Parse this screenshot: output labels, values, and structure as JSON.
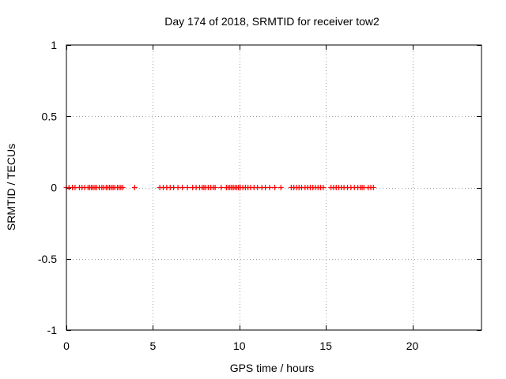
{
  "chart_data": {
    "type": "scatter",
    "title": "Day 174 of 2018, SRMTID for receiver tow2",
    "xlabel": "GPS time / hours",
    "ylabel": "SRMTID / TECUs",
    "xlim": [
      0,
      24
    ],
    "ylim": [
      -1,
      1
    ],
    "xticks": [
      0,
      5,
      10,
      15,
      20
    ],
    "xtick_labels": [
      "0",
      "5",
      "10",
      "15",
      "20"
    ],
    "yticks": [
      1,
      0.5,
      0,
      -0.5,
      -1
    ],
    "ytick_labels": [
      "1",
      "0.5",
      "0",
      "-0.5",
      "-1"
    ],
    "grid": true,
    "marker": "+",
    "color": "#ff0000",
    "series": [
      {
        "name": "SRMTID",
        "x": [
          0.0,
          0.15,
          0.35,
          0.5,
          0.75,
          0.9,
          1.05,
          1.25,
          1.35,
          1.45,
          1.55,
          1.65,
          1.75,
          1.9,
          2.05,
          2.15,
          2.3,
          2.4,
          2.5,
          2.6,
          2.7,
          2.8,
          2.95,
          3.05,
          3.15,
          3.25,
          3.95,
          5.4,
          5.6,
          5.8,
          6.0,
          6.2,
          6.45,
          6.7,
          7.0,
          7.3,
          7.5,
          7.7,
          7.85,
          7.95,
          8.05,
          8.2,
          8.35,
          8.5,
          8.6,
          8.95,
          9.25,
          9.35,
          9.45,
          9.55,
          9.65,
          9.75,
          9.85,
          9.95,
          10.05,
          10.2,
          10.35,
          10.5,
          10.65,
          10.85,
          11.05,
          11.3,
          11.5,
          11.75,
          12.05,
          12.4,
          13.0,
          13.15,
          13.3,
          13.45,
          13.6,
          13.8,
          13.95,
          14.1,
          14.25,
          14.4,
          14.55,
          14.7,
          14.85,
          15.3,
          15.45,
          15.6,
          15.75,
          15.9,
          16.05,
          16.25,
          16.45,
          16.65,
          16.85,
          17.0,
          17.1,
          17.2,
          17.45,
          17.6,
          17.75
        ],
        "y": [
          0,
          0,
          0,
          0,
          0,
          0,
          0,
          0,
          0,
          0,
          0,
          0,
          0,
          0,
          0,
          0,
          0,
          0,
          0,
          0,
          0,
          0,
          0,
          0,
          0,
          0,
          0,
          0,
          0,
          0,
          0,
          0,
          0,
          0,
          0,
          0,
          0,
          0,
          0,
          0,
          0,
          0,
          0,
          0,
          0,
          0,
          0,
          0,
          0,
          0,
          0,
          0,
          0,
          0,
          0,
          0,
          0,
          0,
          0,
          0,
          0,
          0,
          0,
          0,
          0,
          0,
          0,
          0,
          0,
          0,
          0,
          0,
          0,
          0,
          0,
          0,
          0,
          0,
          0,
          0,
          0,
          0,
          0,
          0,
          0,
          0,
          0,
          0,
          0,
          0,
          0,
          0,
          0,
          0,
          0
        ]
      }
    ]
  }
}
